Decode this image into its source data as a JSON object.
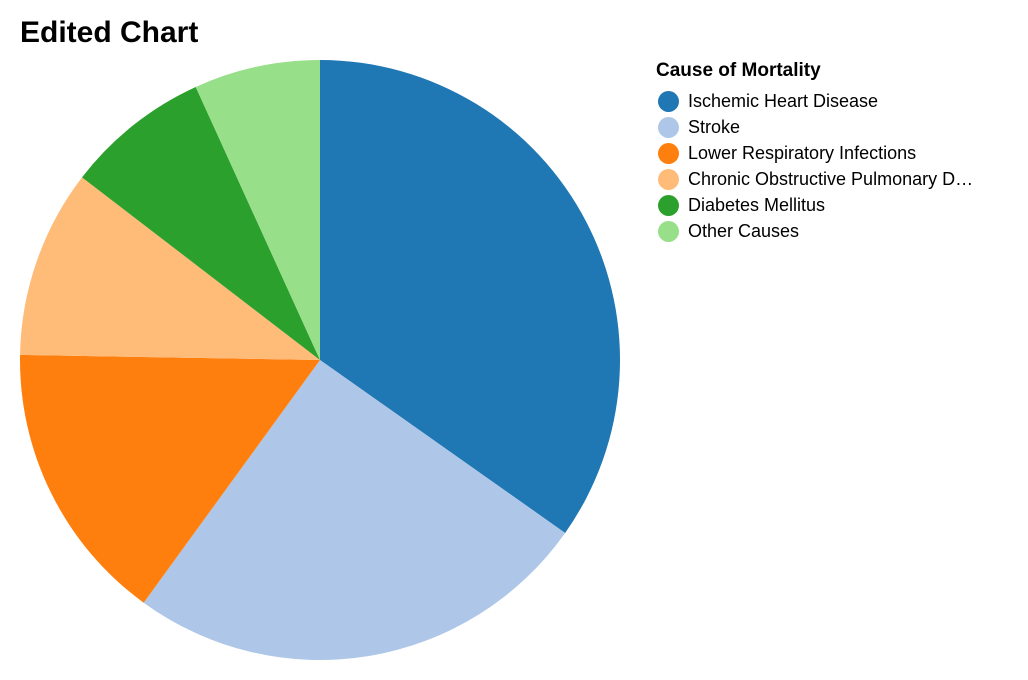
{
  "chart_data": {
    "type": "pie",
    "title": "Edited Chart",
    "legend_title": "Cause of Mortality",
    "legend_position": "right",
    "categories": [
      "Ischemic Heart Disease",
      "Stroke",
      "Lower Respiratory Infections",
      "Chronic Obstructive Pulmonary D…",
      "Diabetes Mellitus",
      "Other Causes"
    ],
    "values": [
      35.3,
      25.6,
      15.5,
      10.3,
      7.9,
      6.9
    ],
    "colors": [
      "#1f77b4",
      "#aec7e8",
      "#ff7f0e",
      "#ffbb78",
      "#2ca02c",
      "#98df8a"
    ]
  }
}
